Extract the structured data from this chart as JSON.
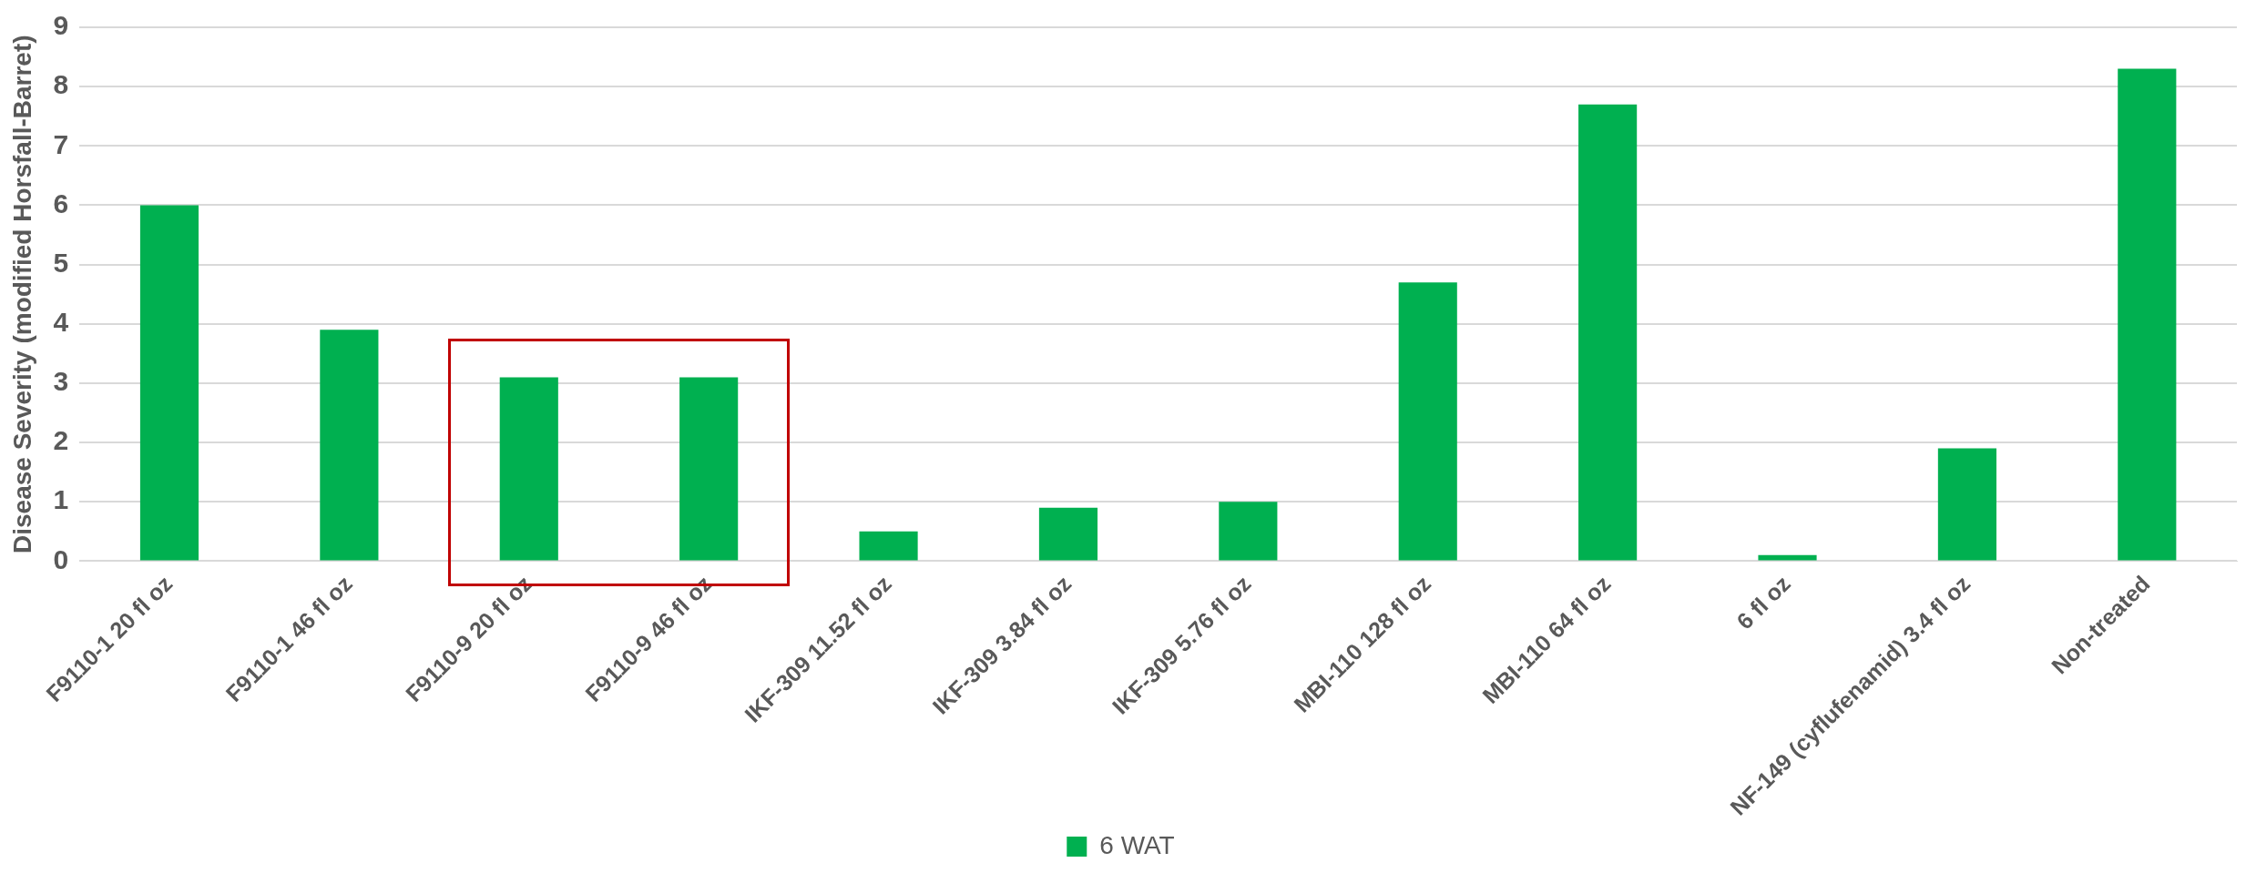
{
  "chart_data": {
    "type": "bar",
    "ylabel": "Disease Severity (modified Horsfall-Barret)",
    "categories": [
      "F9110-1 20 fl oz",
      "F9110-1 46 fl oz",
      "F9110-9 20 fl oz",
      "F9110-9 46 fl oz",
      "IKF-309 11.52 fl oz",
      "IKF-309 3.84 fl oz",
      "IKF-309 5.76 fl oz",
      "MBI-110 128 fl oz",
      "MBI-110 64 fl oz",
      "6 fl oz",
      "NF-149 (cyflufenamid) 3.4 fl oz",
      "Non-treated"
    ],
    "series": [
      {
        "name": "6 WAT",
        "color": "#00b050",
        "values": [
          6.0,
          3.9,
          3.1,
          3.1,
          0.5,
          0.9,
          1.0,
          4.7,
          7.7,
          0.1,
          1.9,
          8.3
        ]
      }
    ],
    "ylim": [
      0,
      9
    ],
    "yticks": [
      0,
      1,
      2,
      3,
      4,
      5,
      6,
      7,
      8,
      9
    ],
    "grid": "y",
    "legend": "bottom"
  }
}
